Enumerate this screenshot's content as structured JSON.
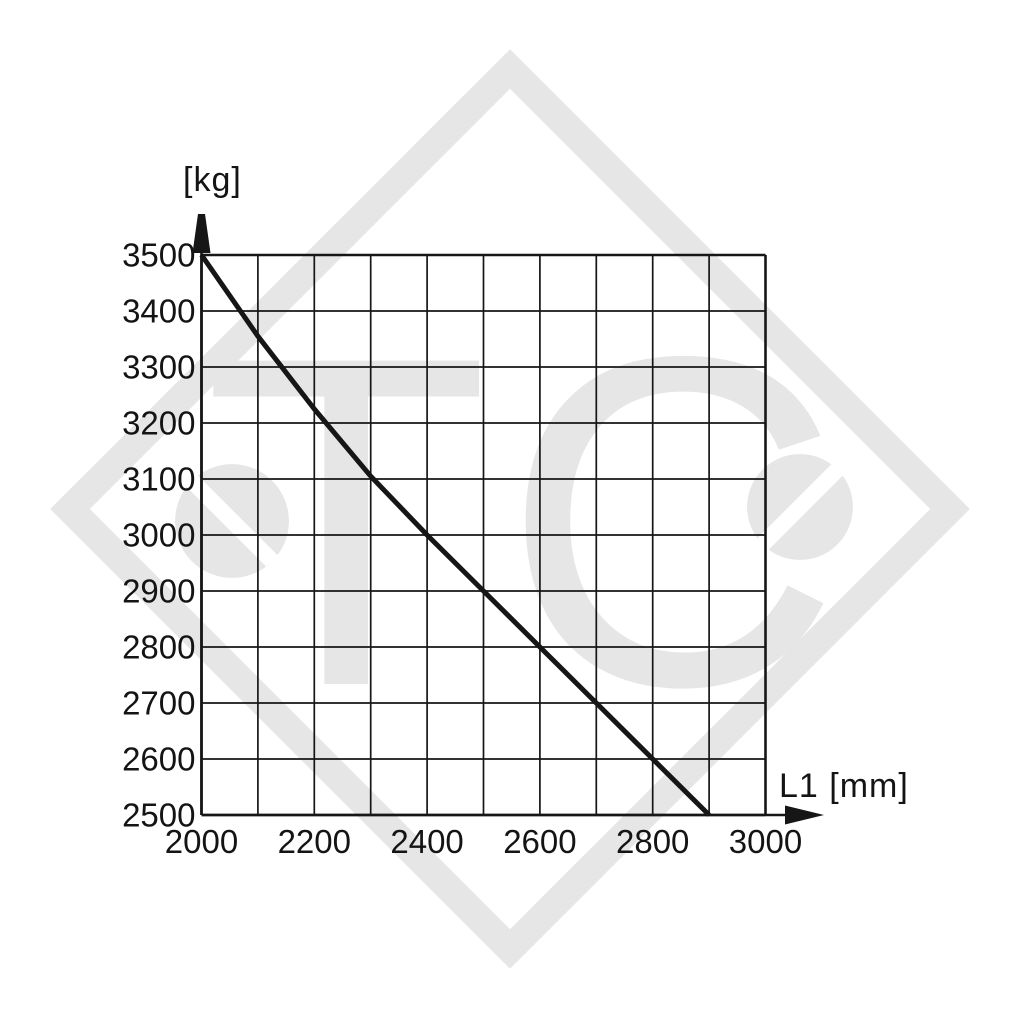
{
  "watermark": {
    "letters": "TC",
    "color": "#e6e6e6"
  },
  "chart_data": {
    "type": "line",
    "title": "",
    "xlabel": "L1 [mm]",
    "ylabel": "[kg]",
    "xlim": [
      2000,
      3000
    ],
    "ylim": [
      2500,
      3500
    ],
    "grid": true,
    "legend": false,
    "grid_step_x": 100,
    "grid_step_y": 100,
    "x_ticks": [
      2000,
      2200,
      2400,
      2600,
      2800,
      3000
    ],
    "x_tick_labels": [
      "2000",
      "2200",
      "2400",
      "2600",
      "2800",
      "3000"
    ],
    "y_ticks": [
      3500,
      3400,
      3300,
      3200,
      3100,
      3000,
      2900,
      2800,
      2700,
      2600,
      2500
    ],
    "y_tick_labels": [
      "3500",
      "3400",
      "3300",
      "3200",
      "3100",
      "3000",
      "2900",
      "2800",
      "2700",
      "2600",
      "2500"
    ],
    "line_color": "#161616",
    "series": [
      {
        "points": [
          [
            2000,
            3500
          ],
          [
            2100,
            3355
          ],
          [
            2200,
            3225
          ],
          [
            2300,
            3105
          ],
          [
            2400,
            3000
          ],
          [
            2500,
            2900
          ],
          [
            2600,
            2800
          ],
          [
            2700,
            2700
          ],
          [
            2800,
            2600
          ],
          [
            2900,
            2500
          ]
        ]
      }
    ]
  }
}
